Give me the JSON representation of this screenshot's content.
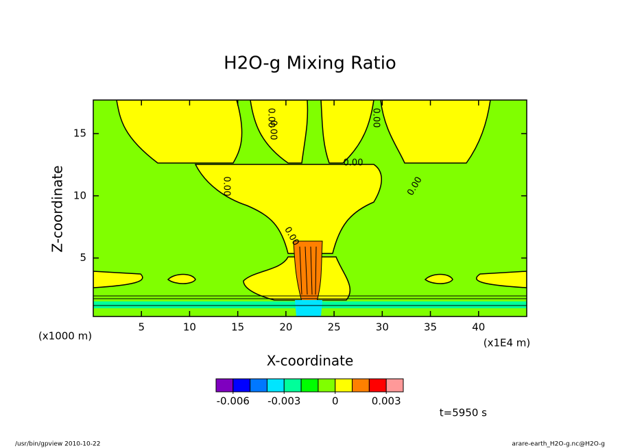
{
  "chart_data": {
    "type": "contour",
    "title": "H2O-g Mixing Ratio",
    "x_label": "X-coordinate",
    "y_label": "Z-coordinate",
    "x_unit": "(x1E4 m)",
    "y_unit": "(x1000 m)",
    "xlim": [
      0,
      45
    ],
    "xticks": [
      5,
      10,
      15,
      20,
      25,
      30,
      35,
      40
    ],
    "ylim": [
      0.3,
      17.7
    ],
    "yticks": [
      5,
      10,
      15
    ],
    "colorbar": {
      "lim": [
        -0.007,
        0.004
      ],
      "ticks": [
        -0.006,
        -0.003,
        0,
        0.003
      ],
      "colors": [
        "#7f00bf",
        "#0000ff",
        "#0078ff",
        "#00e5ff",
        "#00ff9a",
        "#00ff00",
        "#80ff00",
        "#ffff00",
        "#ff8000",
        "#ff0000",
        "#ff9999"
      ]
    },
    "contour_labels": [
      "0.00",
      "0.00",
      "0.00",
      "0.00",
      "0.00",
      "0.00",
      "0.00"
    ],
    "annotation": "t=5950 s",
    "footer_left": "/usr/bin/gpview  2010-10-22",
    "footer_right": "arare-earth_H2O-g.nc@H2O-g"
  }
}
